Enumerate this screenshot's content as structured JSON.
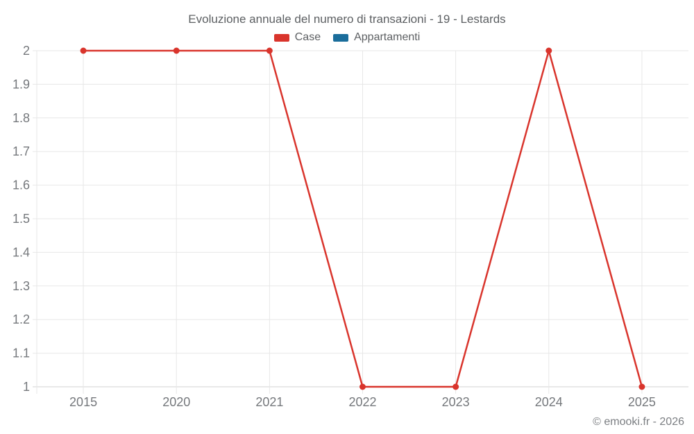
{
  "header": {
    "title": "Evoluzione annuale del numero di transazioni - 19 - Lestards"
  },
  "legend": {
    "items": [
      {
        "label": "Case",
        "color": "#d9342c"
      },
      {
        "label": "Appartamenti",
        "color": "#1a6d9b"
      }
    ]
  },
  "watermark": {
    "text": "© emooki.fr - 2026"
  },
  "chart_data": {
    "type": "line",
    "title": "Evoluzione annuale del numero di transazioni - 19 - Lestards",
    "categories": [
      "2015",
      "2020",
      "2021",
      "2022",
      "2023",
      "2024",
      "2025"
    ],
    "series": [
      {
        "name": "Case",
        "color": "#d9342c",
        "values": [
          2,
          2,
          2,
          1,
          1,
          2,
          1
        ]
      },
      {
        "name": "Appartamenti",
        "color": "#1a6d9b",
        "values": []
      }
    ],
    "xlabel": "",
    "ylabel": "",
    "ylim": [
      1,
      2
    ],
    "ytick_step": 0.1,
    "ytick_labels": [
      "1",
      "1.1",
      "1.2",
      "1.3",
      "1.4",
      "1.5",
      "1.6",
      "1.7",
      "1.8",
      "1.9",
      "2"
    ],
    "grid": true,
    "legend_position": "top",
    "colors": {
      "gridline": "#e7e7e7",
      "axis_line": "#d2d2d2",
      "tick_text": "#75787c",
      "title_text": "#5c5f62"
    }
  }
}
